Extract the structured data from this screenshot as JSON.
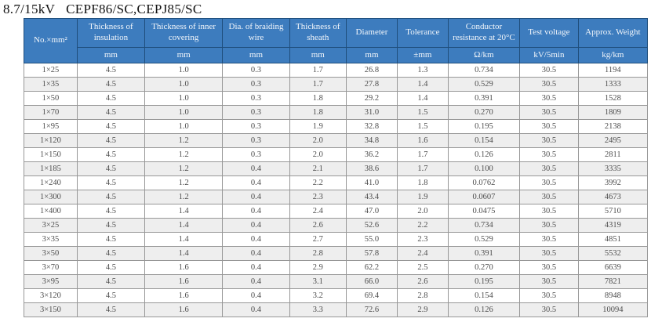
{
  "page_title": {
    "voltage": "8.7/15kV",
    "models": "CEPF86/SC,CEPJ85/SC"
  },
  "colors": {
    "header_bg": "#3d7cbe",
    "header_border": "#1f4e7c",
    "header_text": "#f2f6fb",
    "stripe": "#eeeeee",
    "body_text": "#4d4d4d"
  },
  "table": {
    "columns": [
      {
        "key": "size",
        "label": "No.×mm²",
        "unit": null
      },
      {
        "key": "insulation",
        "label": "Thickness of insulation",
        "unit": "mm"
      },
      {
        "key": "covering",
        "label": "Thickness of inner covering",
        "unit": "mm"
      },
      {
        "key": "braiding",
        "label": "Dia. of braiding wire",
        "unit": "mm"
      },
      {
        "key": "sheath",
        "label": "Thickness of sheath",
        "unit": "mm"
      },
      {
        "key": "diameter",
        "label": "Diameter",
        "unit": "mm"
      },
      {
        "key": "tolerance",
        "label": "Tolerance",
        "unit": "±mm"
      },
      {
        "key": "resistance",
        "label": "Conductor resistance at 20°C",
        "unit": "Ω/km"
      },
      {
        "key": "voltage",
        "label": "Test voltage",
        "unit": "kV/5min"
      },
      {
        "key": "weight",
        "label": "Approx. Weight",
        "unit": "kg/km"
      }
    ],
    "rows": [
      [
        "1×25",
        "4.5",
        "1.0",
        "0.3",
        "1.7",
        "26.8",
        "1.3",
        "0.734",
        "30.5",
        "1194"
      ],
      [
        "1×35",
        "4.5",
        "1.0",
        "0.3",
        "1.7",
        "27.8",
        "1.4",
        "0.529",
        "30.5",
        "1333"
      ],
      [
        "1×50",
        "4.5",
        "1.0",
        "0.3",
        "1.8",
        "29.2",
        "1.4",
        "0.391",
        "30.5",
        "1528"
      ],
      [
        "1×70",
        "4.5",
        "1.0",
        "0.3",
        "1.8",
        "31.0",
        "1.5",
        "0.270",
        "30.5",
        "1809"
      ],
      [
        "1×95",
        "4.5",
        "1.0",
        "0.3",
        "1.9",
        "32.8",
        "1.5",
        "0.195",
        "30.5",
        "2138"
      ],
      [
        "1×120",
        "4.5",
        "1.2",
        "0.3",
        "2.0",
        "34.8",
        "1.6",
        "0.154",
        "30.5",
        "2495"
      ],
      [
        "1×150",
        "4.5",
        "1.2",
        "0.3",
        "2.0",
        "36.2",
        "1.7",
        "0.126",
        "30.5",
        "2811"
      ],
      [
        "1×185",
        "4.5",
        "1.2",
        "0.4",
        "2.1",
        "38.6",
        "1.7",
        "0.100",
        "30.5",
        "3335"
      ],
      [
        "1×240",
        "4.5",
        "1.2",
        "0.4",
        "2.2",
        "41.0",
        "1.8",
        "0.0762",
        "30.5",
        "3992"
      ],
      [
        "1×300",
        "4.5",
        "1.2",
        "0.4",
        "2.3",
        "43.4",
        "1.9",
        "0.0607",
        "30.5",
        "4673"
      ],
      [
        "1×400",
        "4.5",
        "1.4",
        "0.4",
        "2.4",
        "47.0",
        "2.0",
        "0.0475",
        "30.5",
        "5710"
      ],
      [
        "3×25",
        "4.5",
        "1.4",
        "0.4",
        "2.6",
        "52.6",
        "2.2",
        "0.734",
        "30.5",
        "4319"
      ],
      [
        "3×35",
        "4.5",
        "1.4",
        "0.4",
        "2.7",
        "55.0",
        "2.3",
        "0.529",
        "30.5",
        "4851"
      ],
      [
        "3×50",
        "4.5",
        "1.4",
        "0.4",
        "2.8",
        "57.8",
        "2.4",
        "0.391",
        "30.5",
        "5532"
      ],
      [
        "3×70",
        "4.5",
        "1.6",
        "0.4",
        "2.9",
        "62.2",
        "2.5",
        "0.270",
        "30.5",
        "6639"
      ],
      [
        "3×95",
        "4.5",
        "1.6",
        "0.4",
        "3.1",
        "66.0",
        "2.6",
        "0.195",
        "30.5",
        "7821"
      ],
      [
        "3×120",
        "4.5",
        "1.6",
        "0.4",
        "3.2",
        "69.4",
        "2.8",
        "0.154",
        "30.5",
        "8948"
      ],
      [
        "3×150",
        "4.5",
        "1.6",
        "0.4",
        "3.3",
        "72.6",
        "2.9",
        "0.126",
        "30.5",
        "10094"
      ]
    ]
  }
}
